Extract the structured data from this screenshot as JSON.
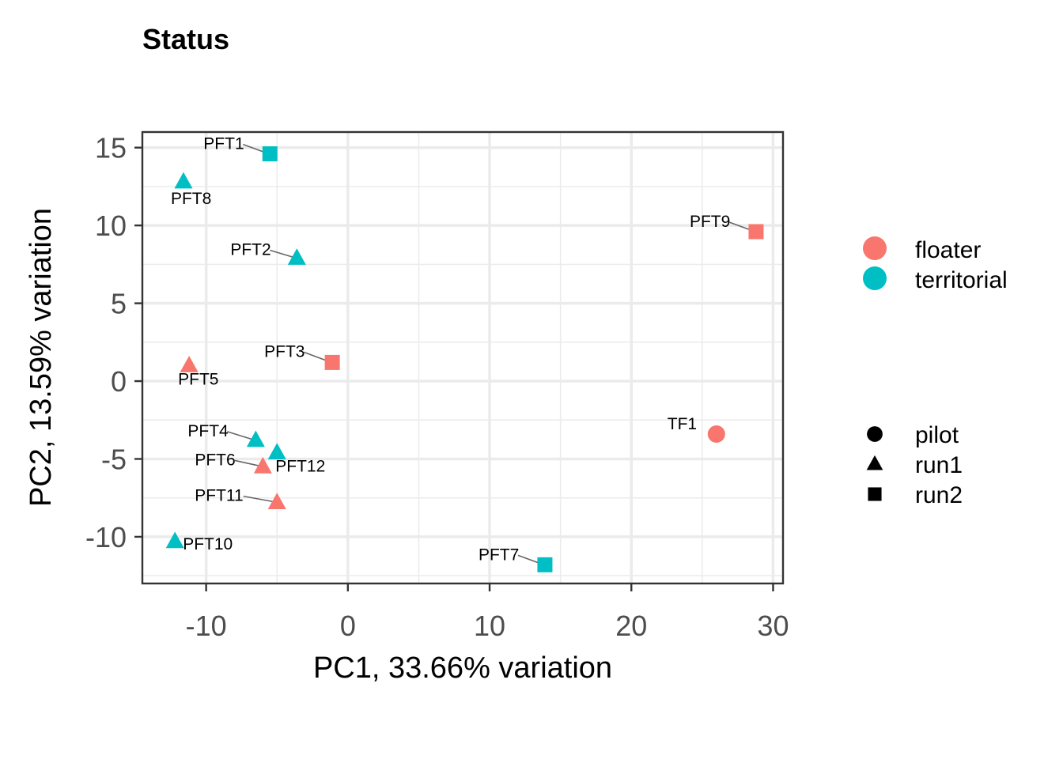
{
  "chart_data": {
    "type": "scatter",
    "title": "Status",
    "xlabel": "PC1, 33.66% variation",
    "ylabel": "PC2, 13.59% variation",
    "xlim": [
      -14.5,
      30.7
    ],
    "ylim": [
      -13,
      16
    ],
    "x_ticks": [
      -10,
      0,
      10,
      20,
      30
    ],
    "y_ticks": [
      15,
      10,
      5,
      0,
      -5,
      -10
    ],
    "x_tick_labels": [
      "-10",
      "0",
      "10",
      "20",
      "30"
    ],
    "y_tick_labels": [
      "15",
      "10",
      "5",
      "0",
      "-5",
      "-10"
    ],
    "grid": true,
    "legend_position": "right",
    "colors": {
      "floater": "#F8766D",
      "territorial": "#00BFC4"
    },
    "color_legend": [
      {
        "label": "floater",
        "key": "floater"
      },
      {
        "label": "territorial",
        "key": "territorial"
      }
    ],
    "shape_legend": [
      {
        "label": "pilot",
        "shape": "circle"
      },
      {
        "label": "run1",
        "shape": "triangle"
      },
      {
        "label": "run2",
        "shape": "square"
      }
    ],
    "points": [
      {
        "label": "PFT1",
        "x": -5.5,
        "y": 14.6,
        "group": "territorial",
        "shape": "square"
      },
      {
        "label": "PFT8",
        "x": -11.6,
        "y": 12.8,
        "group": "territorial",
        "shape": "triangle"
      },
      {
        "label": "PFT9",
        "x": 28.8,
        "y": 9.6,
        "group": "floater",
        "shape": "square"
      },
      {
        "label": "PFT2",
        "x": -3.6,
        "y": 7.9,
        "group": "territorial",
        "shape": "triangle"
      },
      {
        "label": "PFT3",
        "x": -1.1,
        "y": 1.2,
        "group": "floater",
        "shape": "square"
      },
      {
        "label": "PFT5",
        "x": -11.2,
        "y": 1.0,
        "group": "floater",
        "shape": "triangle"
      },
      {
        "label": "TF1",
        "x": 26.0,
        "y": -3.4,
        "group": "floater",
        "shape": "circle"
      },
      {
        "label": "PFT4",
        "x": -6.5,
        "y": -3.8,
        "group": "territorial",
        "shape": "triangle"
      },
      {
        "label": "PFT12",
        "x": -5.0,
        "y": -4.6,
        "group": "territorial",
        "shape": "triangle"
      },
      {
        "label": "PFT6",
        "x": -6.0,
        "y": -5.5,
        "group": "floater",
        "shape": "triangle"
      },
      {
        "label": "PFT11",
        "x": -5.0,
        "y": -7.8,
        "group": "floater",
        "shape": "triangle"
      },
      {
        "label": "PFT10",
        "x": -12.2,
        "y": -10.3,
        "group": "territorial",
        "shape": "triangle"
      },
      {
        "label": "PFT7",
        "x": 13.9,
        "y": -11.8,
        "group": "territorial",
        "shape": "square"
      }
    ]
  }
}
